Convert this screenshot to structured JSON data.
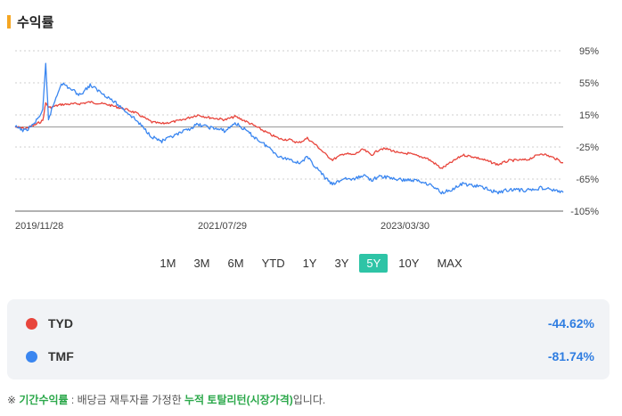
{
  "section": {
    "title": "수익률"
  },
  "chart_data": {
    "type": "line",
    "ylim": [
      -105,
      95
    ],
    "y_ticks": [
      95,
      55,
      15,
      -25,
      -65,
      -105
    ],
    "y_tick_labels": [
      "95%",
      "55%",
      "15%",
      "-25%",
      "-65%",
      "-105%"
    ],
    "x_tick_labels": [
      "2019/11/28",
      "2021/07/29",
      "2023/03/30"
    ],
    "x_range": [
      "2019-11-28",
      "2024-11-28"
    ],
    "baseline": 0,
    "series": [
      {
        "name": "TYD",
        "color": "#e8453c",
        "points": [
          [
            "2019-11-28",
            0
          ],
          [
            "2019-12-31",
            -2
          ],
          [
            "2020-01-31",
            2
          ],
          [
            "2020-02-28",
            8
          ],
          [
            "2020-03-09",
            30
          ],
          [
            "2020-03-20",
            24
          ],
          [
            "2020-04-30",
            28
          ],
          [
            "2020-06-30",
            29
          ],
          [
            "2020-08-04",
            31
          ],
          [
            "2020-09-30",
            28
          ],
          [
            "2020-11-30",
            22
          ],
          [
            "2020-12-31",
            18
          ],
          [
            "2021-02-26",
            6
          ],
          [
            "2021-03-31",
            4
          ],
          [
            "2021-05-31",
            8
          ],
          [
            "2021-07-29",
            15
          ],
          [
            "2021-08-31",
            12
          ],
          [
            "2021-10-29",
            9
          ],
          [
            "2021-11-30",
            13
          ],
          [
            "2021-12-31",
            8
          ],
          [
            "2022-01-31",
            2
          ],
          [
            "2022-03-31",
            -10
          ],
          [
            "2022-04-29",
            -15
          ],
          [
            "2022-05-31",
            -16
          ],
          [
            "2022-06-30",
            -20
          ],
          [
            "2022-07-29",
            -14
          ],
          [
            "2022-08-31",
            -24
          ],
          [
            "2022-09-30",
            -35
          ],
          [
            "2022-10-21",
            -41
          ],
          [
            "2022-11-30",
            -33
          ],
          [
            "2022-12-30",
            -35
          ],
          [
            "2023-01-31",
            -28
          ],
          [
            "2023-02-28",
            -35
          ],
          [
            "2023-03-30",
            -27
          ],
          [
            "2023-04-28",
            -28
          ],
          [
            "2023-05-31",
            -33
          ],
          [
            "2023-06-30",
            -33
          ],
          [
            "2023-07-31",
            -36
          ],
          [
            "2023-08-31",
            -39
          ],
          [
            "2023-09-29",
            -46
          ],
          [
            "2023-10-19",
            -52
          ],
          [
            "2023-11-30",
            -42
          ],
          [
            "2023-12-29",
            -35
          ],
          [
            "2024-01-31",
            -37
          ],
          [
            "2024-02-29",
            -40
          ],
          [
            "2024-04-25",
            -47
          ],
          [
            "2024-05-31",
            -42
          ],
          [
            "2024-07-31",
            -41
          ],
          [
            "2024-09-17",
            -33
          ],
          [
            "2024-10-31",
            -39
          ],
          [
            "2024-11-28",
            -44.62
          ]
        ]
      },
      {
        "name": "TMF",
        "color": "#3a86f0",
        "points": [
          [
            "2019-11-28",
            0
          ],
          [
            "2019-12-31",
            -5
          ],
          [
            "2020-01-31",
            4
          ],
          [
            "2020-02-28",
            20
          ],
          [
            "2020-03-09",
            78
          ],
          [
            "2020-03-18",
            10
          ],
          [
            "2020-04-30",
            55
          ],
          [
            "2020-06-30",
            40
          ],
          [
            "2020-08-04",
            52
          ],
          [
            "2020-09-30",
            38
          ],
          [
            "2020-11-30",
            20
          ],
          [
            "2020-12-31",
            10
          ],
          [
            "2021-02-26",
            -12
          ],
          [
            "2021-03-31",
            -18
          ],
          [
            "2021-05-31",
            -8
          ],
          [
            "2021-07-29",
            3
          ],
          [
            "2021-08-31",
            0
          ],
          [
            "2021-10-29",
            -5
          ],
          [
            "2021-11-30",
            5
          ],
          [
            "2021-12-31",
            -3
          ],
          [
            "2022-01-31",
            -12
          ],
          [
            "2022-03-31",
            -28
          ],
          [
            "2022-04-29",
            -38
          ],
          [
            "2022-05-31",
            -40
          ],
          [
            "2022-06-30",
            -45
          ],
          [
            "2022-07-29",
            -38
          ],
          [
            "2022-08-31",
            -52
          ],
          [
            "2022-09-30",
            -65
          ],
          [
            "2022-10-21",
            -72
          ],
          [
            "2022-11-30",
            -64
          ],
          [
            "2022-12-30",
            -66
          ],
          [
            "2023-01-31",
            -60
          ],
          [
            "2023-02-28",
            -66
          ],
          [
            "2023-03-30",
            -62
          ],
          [
            "2023-04-28",
            -63
          ],
          [
            "2023-05-31",
            -66
          ],
          [
            "2023-06-30",
            -66
          ],
          [
            "2023-07-31",
            -67
          ],
          [
            "2023-08-31",
            -70
          ],
          [
            "2023-09-29",
            -76
          ],
          [
            "2023-10-19",
            -82
          ],
          [
            "2023-11-30",
            -77
          ],
          [
            "2023-12-29",
            -71
          ],
          [
            "2024-01-31",
            -73
          ],
          [
            "2024-02-29",
            -75
          ],
          [
            "2024-04-25",
            -82
          ],
          [
            "2024-05-31",
            -78
          ],
          [
            "2024-07-31",
            -79
          ],
          [
            "2024-09-17",
            -76
          ],
          [
            "2024-10-31",
            -79
          ],
          [
            "2024-11-28",
            -81.74
          ]
        ]
      }
    ],
    "grid": true,
    "legend_placement": "bottom"
  },
  "periods": [
    "1M",
    "3M",
    "6M",
    "YTD",
    "1Y",
    "3Y",
    "5Y",
    "10Y",
    "MAX"
  ],
  "active_period": "5Y",
  "legend": [
    {
      "name": "TYD",
      "value": "-44.62%",
      "color": "#e8453c"
    },
    {
      "name": "TMF",
      "value": "-81.74%",
      "color": "#3a86f0"
    }
  ],
  "footnote": {
    "prefix": "※ ",
    "term": "기간수익률",
    "middle": " : 배당금 재투자를 가정한 ",
    "highlight": "누적 토탈리턴(시장가격)",
    "suffix": "입니다."
  }
}
